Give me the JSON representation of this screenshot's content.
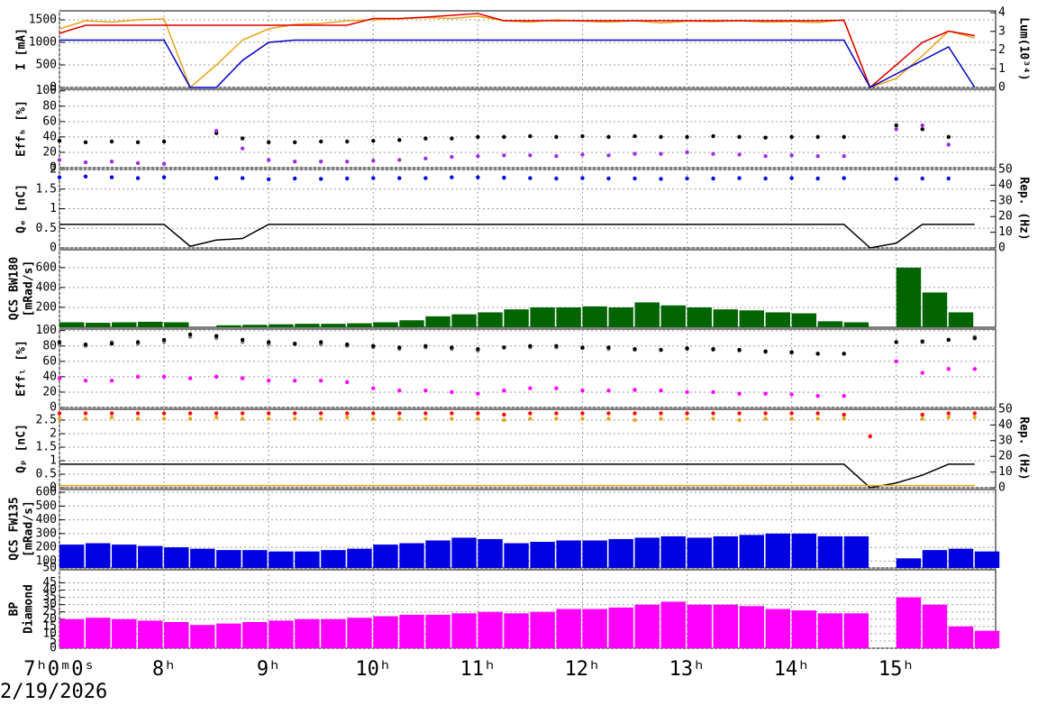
{
  "x_axis": {
    "x": [
      7,
      7.25,
      7.5,
      7.75,
      8,
      8.25,
      8.5,
      8.75,
      9,
      9.25,
      9.5,
      9.75,
      10,
      10.25,
      10.5,
      10.75,
      11,
      11.25,
      11.5,
      11.75,
      12,
      12.25,
      12.5,
      12.75,
      13,
      13.25,
      13.5,
      13.75,
      14,
      14.25,
      14.5,
      14.75,
      15,
      15.25,
      15.5,
      15.75
    ],
    "xlim": [
      7,
      15.95
    ],
    "xticks": [
      {
        "value": 7,
        "label": "7ʰ0ᵐ0ˢ"
      },
      {
        "value": 8,
        "label": "8ʰ"
      },
      {
        "value": 9,
        "label": "9ʰ"
      },
      {
        "value": 10,
        "label": "10ʰ"
      },
      {
        "value": 11,
        "label": "11ʰ"
      },
      {
        "value": 12,
        "label": "12ʰ"
      },
      {
        "value": 13,
        "label": "13ʰ"
      },
      {
        "value": 14,
        "label": "14ʰ"
      },
      {
        "value": 15,
        "label": "15ʰ"
      }
    ],
    "date": "2/19/2026",
    "grid": true
  },
  "chart_data": [
    {
      "type": "line",
      "ylabel": [
        "I [mA]"
      ],
      "y2label": "Lum(10³⁴)",
      "ylim": [
        0,
        1700
      ],
      "yticks": [
        0,
        500,
        1000,
        1500
      ],
      "y2lim": [
        0,
        4.1
      ],
      "y2ticks": [
        0,
        1,
        2,
        3,
        4
      ],
      "series": [
        {
          "color": "#e8a317",
          "values": [
            1300,
            1480,
            1450,
            1500,
            1520,
            0,
            500,
            1050,
            1300,
            1400,
            1420,
            1480,
            1500,
            1520,
            1550,
            1530,
            1580,
            1480,
            1450,
            1500,
            1470,
            1450,
            1480,
            1430,
            1470,
            1460,
            1480,
            1450,
            1460,
            1440,
            1500,
            0,
            200,
            700,
            1250,
            1100
          ]
        },
        {
          "color": "#e00000",
          "values": [
            1200,
            1380,
            1380,
            1380,
            1380,
            1380,
            1380,
            1380,
            1380,
            1380,
            1380,
            1380,
            1530,
            1530,
            1560,
            1600,
            1640,
            1480,
            1480,
            1480,
            1480,
            1480,
            1480,
            1480,
            1480,
            1480,
            1480,
            1480,
            1480,
            1480,
            1490,
            0,
            500,
            1000,
            1250,
            1150
          ]
        },
        {
          "color": "#0000c8",
          "values": [
            1050,
            1050,
            1050,
            1050,
            1050,
            0,
            0,
            600,
            1000,
            1050,
            1050,
            1050,
            1050,
            1050,
            1050,
            1050,
            1050,
            1050,
            1050,
            1050,
            1050,
            1050,
            1050,
            1050,
            1050,
            1050,
            1050,
            1050,
            1050,
            1050,
            1050,
            0,
            300,
            600,
            900,
            0
          ]
        }
      ]
    },
    {
      "type": "scatter",
      "ylabel": [
        "Effₕ [%]"
      ],
      "ylim": [
        0,
        102
      ],
      "yticks": [
        0,
        20,
        40,
        60,
        80,
        100
      ],
      "series": [
        {
          "color": "#000000",
          "values": [
            35,
            33,
            34,
            33,
            34,
            null,
            45,
            38,
            33,
            33,
            34,
            34,
            35,
            36,
            38,
            38,
            40,
            40,
            41,
            40,
            41,
            40,
            41,
            40,
            40,
            41,
            40,
            39,
            40,
            40,
            40,
            null,
            55,
            50,
            40,
            null
          ]
        },
        {
          "color": "#9b30e0",
          "values": [
            10,
            7,
            8,
            6,
            5,
            null,
            48,
            25,
            10,
            8,
            8,
            8,
            9,
            10,
            12,
            14,
            15,
            16,
            16,
            15,
            17,
            16,
            18,
            18,
            20,
            18,
            17,
            15,
            16,
            15,
            15,
            null,
            50,
            55,
            30,
            null
          ]
        }
      ]
    },
    {
      "type": "scatter",
      "ylabel": [
        "Qₑ [nC]"
      ],
      "y2label": "Rep. (Hz)",
      "ylim": [
        0,
        2
      ],
      "yticks": [
        0,
        0.5,
        1,
        1.5,
        2
      ],
      "y2lim": [
        0,
        50
      ],
      "y2ticks": [
        0,
        10,
        20,
        30,
        40,
        50
      ],
      "series": [
        {
          "color": "#0000e0",
          "values": [
            1.8,
            1.82,
            1.8,
            1.78,
            1.8,
            null,
            1.78,
            1.78,
            1.75,
            1.77,
            1.76,
            1.77,
            1.78,
            1.78,
            1.78,
            1.8,
            1.8,
            1.79,
            1.78,
            1.77,
            1.78,
            1.77,
            1.77,
            1.76,
            1.77,
            1.77,
            1.78,
            1.77,
            1.78,
            1.77,
            1.78,
            null,
            1.76,
            1.77,
            1.77,
            null
          ]
        },
        {
          "color": "#000000",
          "type": "line",
          "axis": "y2",
          "values": [
            15,
            15,
            15,
            15,
            15,
            1,
            5,
            6,
            15,
            15,
            15,
            15,
            15,
            15,
            15,
            15,
            15,
            15,
            15,
            15,
            15,
            15,
            15,
            15,
            15,
            15,
            15,
            15,
            15,
            15,
            15,
            0,
            3,
            15,
            15,
            15
          ]
        }
      ]
    },
    {
      "type": "bar",
      "ylabel": [
        "QCS BW180",
        "[mRad/s]"
      ],
      "ylim": [
        0,
        780
      ],
      "yticks": [
        200,
        400,
        600
      ],
      "series": [
        {
          "color": "#006400",
          "values": [
            50,
            45,
            50,
            55,
            50,
            0,
            20,
            25,
            30,
            35,
            35,
            40,
            50,
            70,
            110,
            130,
            150,
            180,
            200,
            200,
            210,
            200,
            250,
            220,
            200,
            180,
            170,
            150,
            140,
            60,
            50,
            0,
            600,
            350,
            150,
            0
          ]
        }
      ]
    },
    {
      "type": "scatter",
      "ylabel": [
        "Effₗ [%]"
      ],
      "ylim": [
        0,
        102
      ],
      "yticks": [
        0,
        20,
        40,
        60,
        80,
        100
      ],
      "series": [
        {
          "color": "#808080",
          "values": [
            82,
            80,
            85,
            83,
            85,
            92,
            90,
            85,
            82,
            82,
            82,
            80,
            78,
            76,
            78,
            76,
            74,
            78,
            78,
            78,
            77,
            76,
            75,
            75,
            76,
            75,
            74,
            72,
            71,
            70,
            70,
            null,
            85,
            85,
            88,
            92
          ]
        },
        {
          "color": "#000000",
          "values": [
            85,
            82,
            83,
            85,
            88,
            95,
            93,
            88,
            85,
            83,
            85,
            82,
            80,
            78,
            80,
            78,
            76,
            78,
            80,
            80,
            78,
            78,
            76,
            75,
            77,
            76,
            75,
            73,
            72,
            70,
            70,
            null,
            85,
            86,
            88,
            90
          ]
        },
        {
          "color": "#ff00ff",
          "values": [
            38,
            35,
            35,
            40,
            40,
            38,
            40,
            38,
            35,
            35,
            35,
            33,
            25,
            22,
            22,
            20,
            18,
            22,
            25,
            25,
            22,
            22,
            23,
            22,
            20,
            20,
            18,
            18,
            17,
            15,
            15,
            null,
            60,
            45,
            50,
            50
          ]
        }
      ]
    },
    {
      "type": "scatter",
      "ylabel": [
        "Qₚ [nC]"
      ],
      "y2label": "Rep. (Hz)",
      "ylim": [
        0,
        2.9
      ],
      "yticks": [
        0,
        0.5,
        1,
        1.5,
        2,
        2.5
      ],
      "y2lim": [
        0,
        50
      ],
      "y2ticks": [
        0,
        10,
        20,
        30,
        40,
        50
      ],
      "series": [
        {
          "color": "#e8a317",
          "values": [
            2.55,
            2.55,
            2.6,
            2.55,
            2.55,
            2.55,
            2.6,
            2.55,
            2.55,
            2.55,
            2.55,
            2.6,
            2.55,
            2.55,
            2.55,
            2.55,
            2.55,
            2.5,
            2.55,
            2.55,
            2.55,
            2.55,
            2.5,
            2.55,
            2.55,
            2.55,
            2.5,
            2.55,
            2.55,
            2.55,
            2.55,
            null,
            null,
            2.55,
            2.6,
            2.6
          ]
        },
        {
          "color": "#ff0000",
          "values": [
            2.75,
            2.75,
            2.75,
            2.75,
            2.75,
            2.75,
            2.75,
            2.75,
            2.75,
            2.75,
            2.75,
            2.75,
            2.75,
            2.75,
            2.75,
            2.75,
            2.75,
            2.7,
            2.75,
            2.75,
            2.75,
            2.75,
            2.75,
            2.75,
            2.75,
            2.75,
            2.75,
            2.75,
            2.75,
            2.75,
            2.7,
            1.9,
            null,
            2.7,
            2.75,
            2.75
          ]
        },
        {
          "color": "#000000",
          "type": "line",
          "axis": "y2",
          "values": [
            15,
            15,
            15,
            15,
            15,
            15,
            15,
            15,
            15,
            15,
            15,
            15,
            15,
            15,
            15,
            15,
            15,
            15,
            15,
            15,
            15,
            15,
            15,
            15,
            15,
            15,
            15,
            15,
            15,
            15,
            15,
            0,
            3,
            8,
            15,
            15
          ]
        },
        {
          "color": "#e8a317",
          "type": "line",
          "values": [
            0.08,
            0.08,
            0.08,
            0.08,
            0.08,
            0.08,
            0.08,
            0.08,
            0.08,
            0.08,
            0.08,
            0.08,
            0.08,
            0.08,
            0.08,
            0.08,
            0.08,
            0.08,
            0.08,
            0.08,
            0.08,
            0.08,
            0.08,
            0.08,
            0.08,
            0.08,
            0.08,
            0.08,
            0.08,
            0.08,
            0.08,
            0.08,
            0.08,
            0.08,
            0.08,
            0.08
          ]
        }
      ]
    },
    {
      "type": "bar",
      "ylabel": [
        "QCS FW135",
        "[mRad/s]"
      ],
      "ylim": [
        50,
        620
      ],
      "yticks": [
        50,
        100,
        200,
        300,
        400,
        500,
        600
      ],
      "series": [
        {
          "color": "#0000e0",
          "values": [
            220,
            230,
            220,
            210,
            200,
            190,
            180,
            180,
            170,
            170,
            180,
            190,
            220,
            230,
            250,
            270,
            260,
            230,
            240,
            250,
            250,
            260,
            270,
            280,
            270,
            280,
            290,
            300,
            300,
            280,
            280,
            50,
            120,
            180,
            190,
            170
          ]
        }
      ]
    },
    {
      "type": "bar",
      "ylabel": [
        "BP",
        "Diamond"
      ],
      "ylim": [
        0,
        54
      ],
      "yticks": [
        0,
        5,
        10,
        15,
        20,
        25,
        30,
        35,
        40,
        45
      ],
      "series": [
        {
          "color": "#ff00ff",
          "values": [
            20,
            21,
            20,
            19,
            18,
            16,
            17,
            18,
            19,
            20,
            20,
            21,
            22,
            23,
            23,
            24,
            25,
            24,
            25,
            27,
            27,
            28,
            30,
            32,
            30,
            30,
            29,
            27,
            26,
            24,
            24,
            0,
            35,
            30,
            15,
            12
          ]
        }
      ]
    }
  ]
}
